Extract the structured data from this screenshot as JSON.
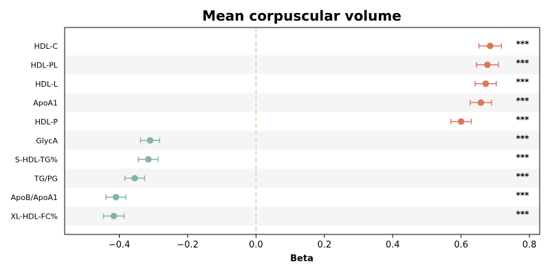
{
  "chart_data": {
    "type": "forest",
    "title": "Mean corpuscular volume",
    "xlabel": "Beta",
    "xlim": [
      -0.56,
      0.83
    ],
    "xticks": [
      -0.4,
      -0.2,
      0.0,
      0.2,
      0.4,
      0.6,
      0.8
    ],
    "xtick_labels": [
      "−0.4",
      "−0.2",
      "0.0",
      "0.2",
      "0.4",
      "0.6",
      "0.8"
    ],
    "reference_line": 0.0,
    "categories": [
      "HDL-C",
      "HDL-PL",
      "HDL-L",
      "ApoA1",
      "HDL-P",
      "GlycA",
      "S-HDL-TG%",
      "TG/PG",
      "ApoB/ApoA1",
      "XL-HDL-FC%"
    ],
    "beta": [
      0.685,
      0.677,
      0.672,
      0.658,
      0.6,
      -0.31,
      -0.315,
      -0.355,
      -0.41,
      -0.416
    ],
    "ci_lower": [
      0.652,
      0.645,
      0.641,
      0.627,
      0.57,
      -0.338,
      -0.344,
      -0.384,
      -0.439,
      -0.446
    ],
    "ci_upper": [
      0.718,
      0.709,
      0.703,
      0.689,
      0.63,
      -0.282,
      -0.286,
      -0.326,
      -0.381,
      -0.386
    ],
    "significance": [
      "***",
      "***",
      "***",
      "***",
      "***",
      "***",
      "***",
      "***",
      "***",
      "***"
    ],
    "colors": {
      "positive": "#d9775c",
      "negative": "#84b59e",
      "reference": "#f5c98a",
      "band": "#f5f5f5"
    }
  }
}
